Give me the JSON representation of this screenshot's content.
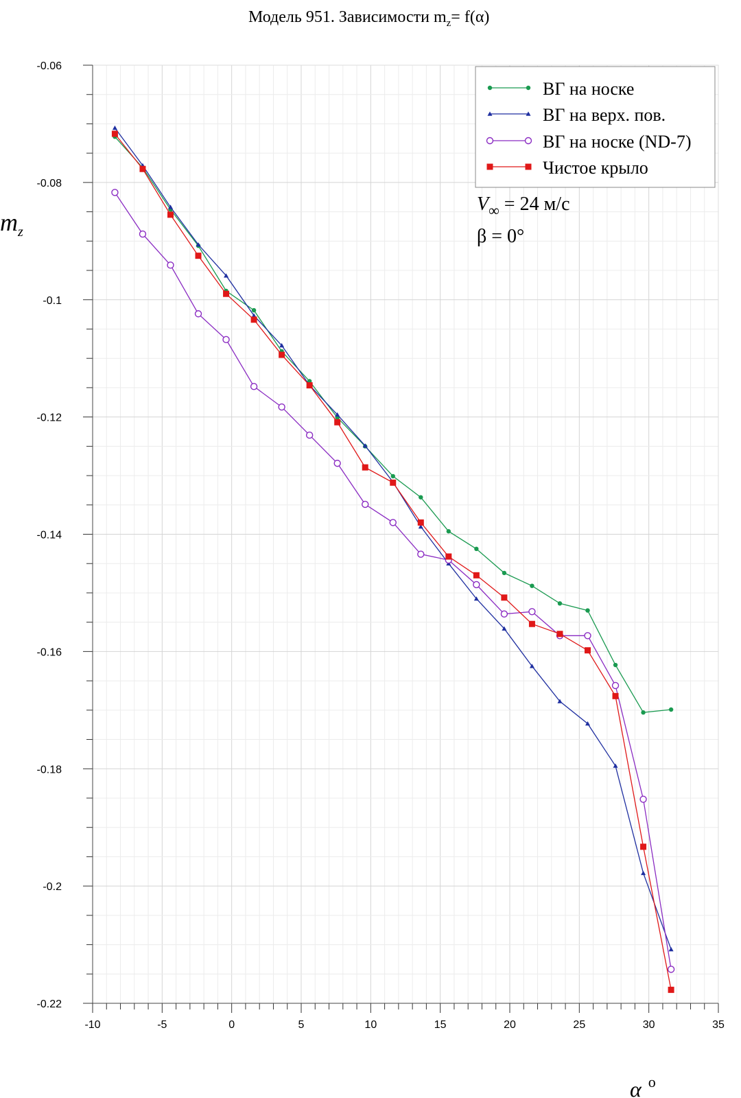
{
  "chart_data": {
    "type": "line",
    "title": "Модель 951. Зависимости m",
    "title_sub": "z",
    "title_tail": "= f(α)",
    "xlabel": "α",
    "xlabel_sup": "o",
    "ylabel": "m",
    "ylabel_sub": "z",
    "xlim": [
      -10,
      35
    ],
    "ylim": [
      -0.22,
      -0.06
    ],
    "xticks": [
      -10,
      -5,
      0,
      5,
      10,
      15,
      20,
      25,
      30,
      35
    ],
    "xtick_labels": [
      "-10",
      "-5",
      "0",
      "5",
      "10",
      "15",
      "20",
      "25",
      "30",
      "35"
    ],
    "yticks": [
      -0.06,
      -0.08,
      -0.1,
      -0.12,
      -0.14,
      -0.16,
      -0.18,
      -0.2,
      -0.22
    ],
    "ytick_labels": [
      "-0.06",
      "-0.08",
      "-0.1",
      "-0.12",
      "-0.14",
      "-0.16",
      "-0.18",
      "-0.2",
      "-0.22"
    ],
    "grid": true,
    "legend_position": "top-right",
    "x": [
      -8.4,
      -6.4,
      -4.4,
      -2.4,
      -0.4,
      1.6,
      3.6,
      5.6,
      7.6,
      9.6,
      11.6,
      13.6,
      15.6,
      17.6,
      19.6,
      21.6,
      23.6,
      25.6,
      27.6,
      29.6,
      31.6
    ],
    "series": [
      {
        "name": "ВГ на носке",
        "color": "#1a9a50",
        "marker": "dot",
        "values": [
          -0.0722,
          -0.0775,
          -0.0846,
          -0.0908,
          -0.0985,
          -0.1018,
          -0.1088,
          -0.1139,
          -0.1201,
          -0.125,
          -0.1301,
          -0.1337,
          -0.1395,
          -0.1425,
          -0.1466,
          -0.1488,
          -0.1518,
          -0.153,
          -0.1623,
          -0.1704,
          -0.1699
        ]
      },
      {
        "name": "ВГ на верх. пов.",
        "color": "#1f2fa0",
        "marker": "triangle",
        "values": [
          -0.0707,
          -0.0771,
          -0.0842,
          -0.0906,
          -0.0959,
          -0.1027,
          -0.1078,
          -0.1146,
          -0.1196,
          -0.1249,
          -0.1311,
          -0.1387,
          -0.145,
          -0.151,
          -0.1561,
          -0.1625,
          -0.1685,
          -0.1723,
          -0.1795,
          -0.1978,
          -0.2108
        ]
      },
      {
        "name": "ВГ на носке (ND-7)",
        "color": "#8a2bc2",
        "marker": "circle",
        "values": [
          -0.0817,
          -0.0888,
          -0.0941,
          -0.1024,
          -0.1068,
          -0.1148,
          -0.1183,
          -0.1231,
          -0.1279,
          -0.1349,
          -0.138,
          -0.1434,
          -0.1444,
          -0.1486,
          -0.1536,
          -0.1532,
          -0.1573,
          -0.1573,
          -0.1658,
          -0.1852,
          -0.2142
        ]
      },
      {
        "name": "Чистое крыло",
        "color": "#e01818",
        "marker": "square",
        "values": [
          -0.0717,
          -0.0777,
          -0.0855,
          -0.0925,
          -0.099,
          -0.1034,
          -0.1094,
          -0.1146,
          -0.1209,
          -0.1286,
          -0.1312,
          -0.138,
          -0.1438,
          -0.147,
          -0.1508,
          -0.1553,
          -0.157,
          -0.1598,
          -0.1676,
          -0.1933,
          -0.2177
        ]
      }
    ],
    "annotations": {
      "velocity_symbol": "V",
      "velocity_sub": "∞",
      "velocity_value": " = 24 м/с",
      "beta": "β = 0°"
    }
  }
}
